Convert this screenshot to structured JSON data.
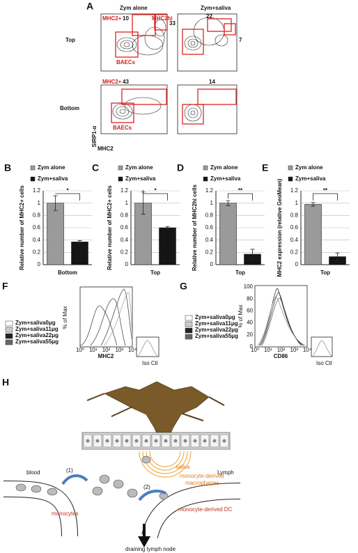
{
  "panel_a": {
    "label": "A",
    "columns": [
      "Zym alone",
      "Zym+saliva"
    ],
    "rows": [
      "Top",
      "Bottom"
    ],
    "gates": {
      "top_alone": {
        "mhc2pos": "MHC2+",
        "mhc2pos_pct": 10,
        "mhc2hi": "MHC2hi",
        "mhc2hi_pct": 33,
        "baecs": "BAECs"
      },
      "top_saliva": {
        "mhc2pos_pct": 22,
        "mhc2hi_pct": 7
      },
      "bottom_alone": {
        "mhc2pos": "MHC2+",
        "mhc2pos_pct": 43,
        "baecs": "BAECs"
      },
      "bottom_saliva": {
        "mhc2pos_pct": 14
      }
    },
    "y_axis_label": "SIRP1-α",
    "x_axis_label": "MHC2"
  },
  "chart_data": [
    {
      "type": "bar",
      "panel": "B",
      "categories": [
        "Bottom"
      ],
      "y_label": "Relative number of MHC2+ cells",
      "significance": "*",
      "ylim": [
        0,
        1.2
      ],
      "yticks": [
        0,
        0.2,
        0.4,
        0.6,
        0.8,
        1,
        1.2
      ],
      "grid": true,
      "series": [
        {
          "name": "Zym alone",
          "color": "#9a9a9a",
          "values": [
            1
          ],
          "errors": [
            0.12
          ]
        },
        {
          "name": "Zym+saliva",
          "color": "#151515",
          "values": [
            0.37
          ],
          "errors": [
            0.02
          ]
        }
      ]
    },
    {
      "type": "bar",
      "panel": "C",
      "categories": [
        "Top"
      ],
      "y_label": "Relative number of MHC2+ cells",
      "significance": "*",
      "ylim": [
        0,
        1.2
      ],
      "yticks": [
        0,
        0.2,
        0.4,
        0.6,
        0.8,
        1,
        1.2
      ],
      "grid": true,
      "series": [
        {
          "name": "Zym alone",
          "color": "#9a9a9a",
          "values": [
            1
          ],
          "errors": [
            0.18
          ]
        },
        {
          "name": "Zym+saliva",
          "color": "#151515",
          "values": [
            0.6
          ],
          "errors": [
            0.02
          ]
        }
      ]
    },
    {
      "type": "bar",
      "panel": "D",
      "categories": [
        "Top"
      ],
      "y_label": "Relative number of MHC2hi cells",
      "significance": "**",
      "ylim": [
        0,
        1.2
      ],
      "yticks": [
        0,
        0.2,
        0.4,
        0.6,
        0.8,
        1,
        1.2
      ],
      "grid": true,
      "series": [
        {
          "name": "Zym alone",
          "color": "#9a9a9a",
          "values": [
            1
          ],
          "errors": [
            0.04
          ]
        },
        {
          "name": "Zym+saliva",
          "color": "#151515",
          "values": [
            0.17
          ],
          "errors": [
            0.08
          ]
        }
      ]
    },
    {
      "type": "bar",
      "panel": "E",
      "categories": [
        "Top"
      ],
      "y_label": "MHC2 expression (relative GeoMean)",
      "significance": "**",
      "ylim": [
        0,
        1.2
      ],
      "yticks": [
        0,
        0.2,
        0.4,
        0.6,
        0.8,
        1,
        1.2
      ],
      "grid": true,
      "series": [
        {
          "name": "Zym alone",
          "color": "#9a9a9a",
          "values": [
            0.98
          ],
          "errors": [
            0.03
          ]
        },
        {
          "name": "Zym+saliva",
          "color": "#151515",
          "values": [
            0.13
          ],
          "errors": [
            0.06
          ]
        }
      ]
    }
  ],
  "panel_f": {
    "label": "F",
    "legend": [
      "Zym+saliva0μg",
      "Zym+saliva11μg",
      "Zym+saliva22μg",
      "Zym+saliva55μg"
    ],
    "x_label": "MHC2",
    "y_label": "% of Max",
    "x_ticks": [
      "10⁰",
      "10¹",
      "10²",
      "10³",
      "10⁴"
    ],
    "inset_label": "Iso Ctl"
  },
  "panel_g": {
    "label": "G",
    "legend": [
      "Zym+saliva0μg",
      "Zym+saliva11μg",
      "Zym+saliva22μg",
      "Zym+saliva55μg"
    ],
    "x_label": "CD86",
    "y_label": "% of Max",
    "x_ticks": [
      "10⁰",
      "10¹",
      "10²",
      "10³",
      "10⁴"
    ],
    "y_ticks": [
      0,
      20,
      40,
      60,
      80,
      100
    ],
    "inset_label": "Iso Ctl"
  },
  "panel_h": {
    "label": "H",
    "saliva": "saliva",
    "macrophages": [
      "monocyte-derived",
      "macrophages"
    ],
    "blood": "blood",
    "step_1": "(1)",
    "lymph": "Lymph",
    "step_2": "(2)",
    "monocytes": "monocytes",
    "dc": "monocyte-derived DC",
    "node": "draining lymph node"
  }
}
